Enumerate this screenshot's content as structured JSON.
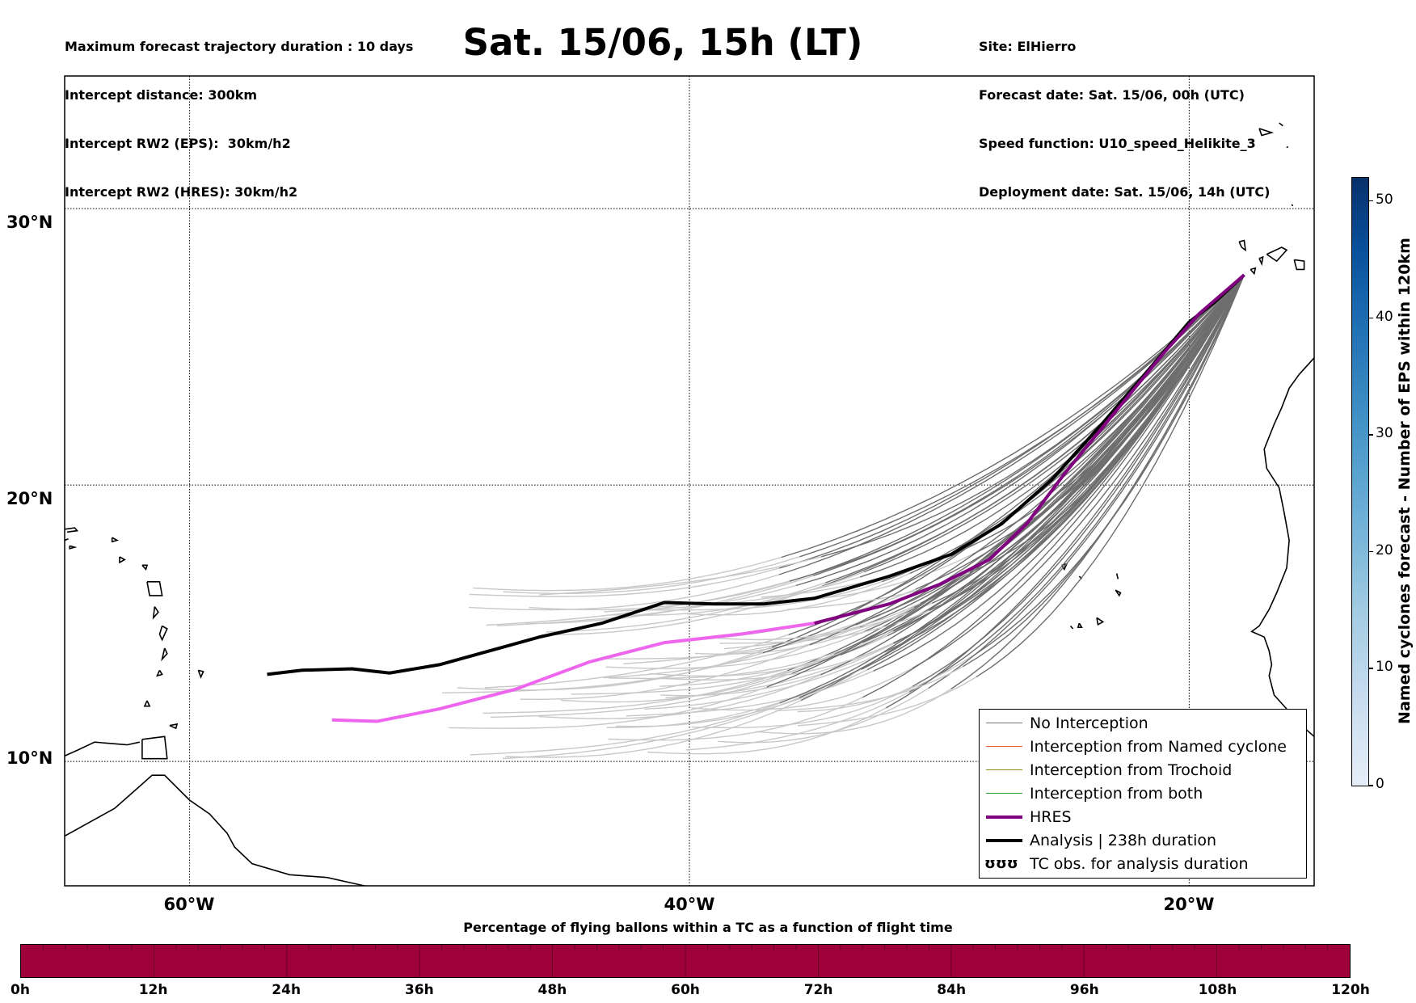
{
  "header": {
    "left_lines": [
      "Maximum forecast trajectory duration : 10 days",
      "Intercept distance: 300km",
      "Intercept RW2 (EPS):  30km/h2",
      "Intercept RW2 (HRES): 30km/h2"
    ],
    "right_lines": [
      "Site: ElHierro",
      "Forecast date: Sat. 15/06, 00h (UTC)",
      "Speed function: U10_speed_Helikite_3",
      "Deployment date: Sat. 15/06, 14h (UTC)"
    ],
    "title": "Sat. 15/06, 15h (LT)"
  },
  "map": {
    "extent": {
      "lon_min": -65,
      "lon_max": -15,
      "lat_min": 5.5,
      "lat_max": 34.8
    },
    "lat_labels": [
      "30°N",
      "20°N",
      "10°N"
    ],
    "lon_labels": [
      "60°W",
      "40°W",
      "20°W"
    ],
    "colors": {
      "eps": "#c8c8c8",
      "eps_dark": "#6e6e6e",
      "hres": "#800080",
      "hres_light": "#ee66ee",
      "analysis": "#000000"
    },
    "analysis_track": [
      [
        -56.9,
        13.15
      ],
      [
        -55.5,
        13.3
      ],
      [
        -53.5,
        13.35
      ],
      [
        -52,
        13.2
      ],
      [
        -50,
        13.5
      ],
      [
        -48,
        14
      ],
      [
        -46,
        14.5
      ],
      [
        -43.5,
        15
      ],
      [
        -41,
        15.75
      ],
      [
        -39,
        15.7
      ],
      [
        -37,
        15.7
      ],
      [
        -35,
        15.9
      ],
      [
        -32,
        16.7
      ],
      [
        -29.5,
        17.5
      ],
      [
        -27.5,
        18.6
      ],
      [
        -25.5,
        20.2
      ],
      [
        -23.5,
        22.2
      ],
      [
        -21.5,
        24.3
      ],
      [
        -20,
        25.9
      ],
      [
        -19,
        26.6
      ],
      [
        -17.8,
        27.6
      ]
    ],
    "hres_track": [
      [
        -54.3,
        11.5
      ],
      [
        -52.5,
        11.45
      ],
      [
        -50,
        11.9
      ],
      [
        -47,
        12.6
      ],
      [
        -44,
        13.6
      ],
      [
        -41,
        14.3
      ],
      [
        -38,
        14.6
      ],
      [
        -35,
        15.0
      ],
      [
        -32,
        15.7
      ],
      [
        -30,
        16.4
      ],
      [
        -28,
        17.3
      ],
      [
        -26.5,
        18.6
      ],
      [
        -25,
        20.4
      ],
      [
        -23,
        22.6
      ],
      [
        -21,
        24.8
      ],
      [
        -19.6,
        26.2
      ],
      [
        -17.8,
        27.6
      ]
    ],
    "hres_light_until_lon": -34.0
  },
  "legend": [
    {
      "label": "No Interception",
      "style": "thin",
      "color": "#777777"
    },
    {
      "label": "Interception from Named cyclone",
      "style": "thin",
      "color": "#e8602c"
    },
    {
      "label": "Interception from Trochoid",
      "style": "thin",
      "color": "#8b8b10"
    },
    {
      "label": "Interception from both",
      "style": "thin",
      "color": "#2ca02c"
    },
    {
      "label": "HRES",
      "style": "thick",
      "color": "#800080"
    },
    {
      "label": "Analysis | 238h duration",
      "style": "thick",
      "color": "#000000"
    },
    {
      "label": "TC obs. for analysis duration",
      "style": "symbol",
      "symbol": "ʊʊʊ"
    }
  ],
  "colorbar": {
    "title": "Named cyclones forecast - Number of EPS within 120km",
    "ticks": [
      "0",
      "10",
      "20",
      "30",
      "40",
      "50"
    ],
    "tick_values": [
      0,
      10,
      20,
      30,
      40,
      50
    ],
    "max": 52
  },
  "flight_bar": {
    "title": "Percentage of flying ballons within a TC as a function of flight time",
    "labels": [
      "0h",
      "12h",
      "24h",
      "36h",
      "48h",
      "60h",
      "72h",
      "84h",
      "96h",
      "108h",
      "120h"
    ],
    "fill_color": "#9e003a"
  }
}
